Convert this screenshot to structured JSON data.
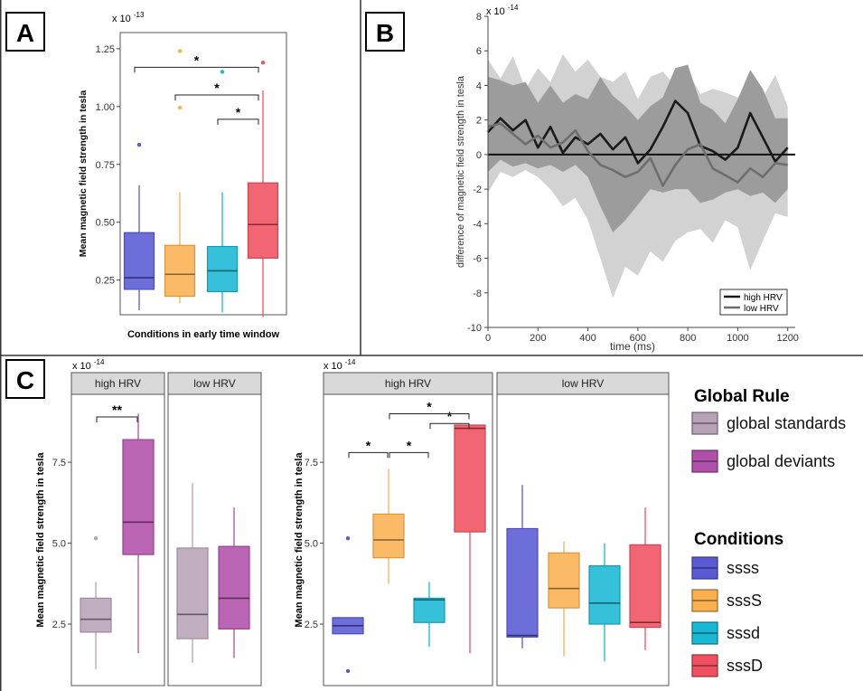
{
  "panels": {
    "A": {
      "label": "A"
    },
    "B": {
      "label": "B"
    },
    "C": {
      "label": "C"
    }
  },
  "colors": {
    "ssss": "#5a5ad6",
    "sssS": "#fbb04f",
    "sssd": "#17b8d4",
    "sssD": "#f0505f",
    "global_standards": "#b8a2b8",
    "global_deviants": "#b14fab",
    "high_hrv_line": "#1a1a1a",
    "low_hrv_line": "#6e6e6e",
    "ribbon_dark": "#9c9c9c",
    "ribbon_light": "#d2d2d2",
    "strip_bg": "#d9d9d9",
    "axis": "#444444"
  },
  "chart_data": [
    {
      "id": "A",
      "type": "box",
      "scale_note": "x 10",
      "scale_exp": "-13",
      "ylabel": "Mean magnetic field strength in tesla",
      "xlabel": "Conditions in early time window",
      "ylim": [
        0.1,
        1.32
      ],
      "yticks": [
        "0.25",
        "0.50",
        "0.75",
        "1.00",
        "1.25"
      ],
      "ytick_values": [
        0.25,
        0.5,
        0.75,
        1.0,
        1.25
      ],
      "grid": false,
      "boxes": [
        {
          "condition": "ssss",
          "q1": 0.21,
          "median": 0.26,
          "q3": 0.455,
          "whisker_low": 0.12,
          "whisker_high": 0.66,
          "outliers": [
            0.835
          ]
        },
        {
          "condition": "sssS",
          "q1": 0.18,
          "median": 0.275,
          "q3": 0.4,
          "whisker_low": 0.15,
          "whisker_high": 0.63,
          "outliers": [
            0.995,
            1.24
          ]
        },
        {
          "condition": "sssd",
          "q1": 0.2,
          "median": 0.29,
          "q3": 0.395,
          "whisker_low": 0.11,
          "whisker_high": 0.63,
          "outliers": [
            1.15
          ]
        },
        {
          "condition": "sssD",
          "q1": 0.345,
          "median": 0.49,
          "q3": 0.67,
          "whisker_low": 0.09,
          "whisker_high": 1.07,
          "outliers": [
            1.19
          ]
        }
      ],
      "significance": [
        {
          "from": 0,
          "to": 3,
          "y": 1.17,
          "label": "*"
        },
        {
          "from": 1,
          "to": 3,
          "y": 1.05,
          "label": "*"
        },
        {
          "from": 2,
          "to": 3,
          "y": 0.945,
          "label": "*"
        }
      ]
    },
    {
      "id": "B",
      "type": "line",
      "scale_note": "x 10",
      "scale_exp": "-14",
      "xlabel": "time (ms)",
      "ylabel": "difference of magnetic field strength in tesla",
      "xlim": [
        0,
        1230
      ],
      "ylim": [
        -10,
        8
      ],
      "xticks": [
        "0",
        "200",
        "400",
        "600",
        "800",
        "1000",
        "1200"
      ],
      "xtick_values": [
        0,
        200,
        400,
        600,
        800,
        1000,
        1200
      ],
      "yticks": [
        "-10",
        "-8",
        "-6",
        "-4",
        "-2",
        "0",
        "2",
        "4",
        "6",
        "8"
      ],
      "ytick_values": [
        -10,
        -8,
        -6,
        -4,
        -2,
        0,
        2,
        4,
        6,
        8
      ],
      "legend_position": "bottom-right",
      "series": [
        {
          "name": "high HRV",
          "x": [
            0,
            50,
            100,
            150,
            200,
            250,
            300,
            350,
            400,
            450,
            500,
            550,
            600,
            650,
            700,
            750,
            800,
            850,
            900,
            950,
            1000,
            1050,
            1100,
            1150,
            1200
          ],
          "y": [
            1.3,
            2.1,
            1.4,
            2.0,
            0.4,
            1.6,
            0.1,
            1.0,
            0.6,
            1.2,
            0.3,
            1.0,
            -0.5,
            0.3,
            1.6,
            3.1,
            2.4,
            0.5,
            0.2,
            -0.3,
            0.4,
            2.4,
            1.0,
            -0.4,
            0.4
          ]
        },
        {
          "name": "low HRV",
          "x": [
            0,
            50,
            100,
            150,
            200,
            250,
            300,
            350,
            400,
            450,
            500,
            550,
            600,
            650,
            700,
            750,
            800,
            850,
            900,
            950,
            1000,
            1050,
            1100,
            1150,
            1200
          ],
          "y": [
            1.6,
            1.8,
            1.2,
            0.6,
            1.1,
            0.4,
            0.7,
            1.4,
            0.2,
            -0.6,
            -0.9,
            -1.3,
            -1.0,
            -0.2,
            -1.8,
            -0.6,
            0.3,
            0.6,
            -0.8,
            -1.2,
            -1.6,
            -0.8,
            -1.3,
            -0.5,
            -0.6
          ]
        }
      ],
      "ribbons": [
        {
          "series": "low HRV",
          "x": [
            0,
            50,
            100,
            150,
            200,
            250,
            300,
            350,
            400,
            450,
            500,
            550,
            600,
            650,
            700,
            750,
            800,
            850,
            900,
            950,
            1000,
            1050,
            1100,
            1150,
            1200
          ],
          "upper": [
            5.5,
            4.4,
            5.7,
            3.8,
            5.0,
            4.2,
            5.8,
            4.8,
            5.5,
            4.5,
            4.2,
            4.8,
            3.2,
            4.5,
            4.8,
            4.0,
            4.8,
            3.5,
            3.8,
            3.6,
            3.3,
            4.1,
            3.3,
            4.6,
            2.8
          ],
          "lower": [
            -2.2,
            -1.0,
            -1.3,
            -0.9,
            -1.3,
            -2.0,
            -3.0,
            -2.5,
            -3.8,
            -6.0,
            -8.3,
            -6.5,
            -7.0,
            -5.6,
            -6.2,
            -5.0,
            -4.5,
            -4.3,
            -5.1,
            -3.8,
            -4.2,
            -6.7,
            -5.0,
            -3.4,
            -3.6
          ]
        },
        {
          "series": "high HRV",
          "x": [
            0,
            50,
            100,
            150,
            200,
            250,
            300,
            350,
            400,
            450,
            500,
            550,
            600,
            650,
            700,
            750,
            800,
            850,
            900,
            950,
            1000,
            1050,
            1100,
            1150,
            1200
          ],
          "upper": [
            4.5,
            4.3,
            4.0,
            4.2,
            3.0,
            4.0,
            3.0,
            3.5,
            3.2,
            4.5,
            3.4,
            2.8,
            2.0,
            2.8,
            3.3,
            5.0,
            5.2,
            3.0,
            2.6,
            1.8,
            3.2,
            4.9,
            3.8,
            2.1,
            2.1
          ],
          "lower": [
            -1.0,
            -0.3,
            -0.7,
            -0.5,
            -0.8,
            -0.6,
            -1.0,
            -0.6,
            -1.3,
            -3.0,
            -4.5,
            -3.8,
            -2.9,
            -2.0,
            -2.2,
            -2.0,
            -2.0,
            -2.8,
            -2.6,
            -2.2,
            -2.0,
            -2.4,
            -2.2,
            -2.8,
            -2.0
          ]
        }
      ]
    },
    {
      "id": "C1",
      "type": "box",
      "scale_note": "x 10",
      "scale_exp": "-14",
      "ylabel": "Mean magnetic field strength in tesla",
      "ylim": [
        0.6,
        9.6
      ],
      "yticks": [
        "2.5",
        "5.0",
        "7.5"
      ],
      "ytick_values": [
        2.5,
        5.0,
        7.5
      ],
      "facets": [
        {
          "label": "high HRV",
          "boxes": [
            {
              "condition": "global_standards",
              "q1": 2.25,
              "median": 2.65,
              "q3": 3.3,
              "whisker_low": 1.1,
              "whisker_high": 3.8,
              "outliers": [
                5.15
              ]
            },
            {
              "condition": "global_deviants",
              "q1": 4.65,
              "median": 5.65,
              "q3": 8.2,
              "whisker_low": 1.6,
              "whisker_high": 9.0,
              "outliers": []
            }
          ],
          "significance": [
            {
              "from": 0,
              "to": 1,
              "y": 8.9,
              "label": "**"
            }
          ]
        },
        {
          "label": "low HRV",
          "boxes": [
            {
              "condition": "global_standards",
              "q1": 2.05,
              "median": 2.8,
              "q3": 4.85,
              "whisker_low": 1.3,
              "whisker_high": 6.85,
              "outliers": []
            },
            {
              "condition": "global_deviants",
              "q1": 2.35,
              "median": 3.3,
              "q3": 4.9,
              "whisker_low": 1.45,
              "whisker_high": 6.1,
              "outliers": []
            }
          ],
          "significance": []
        }
      ]
    },
    {
      "id": "C2",
      "type": "box",
      "scale_note": "x 10",
      "scale_exp": "-14",
      "ylabel": "Mean magnetic field strength in tesla",
      "ylim": [
        0.6,
        9.6
      ],
      "yticks": [
        "2.5",
        "5.0",
        "7.5"
      ],
      "ytick_values": [
        2.5,
        5.0,
        7.5
      ],
      "facets": [
        {
          "label": "high HRV",
          "boxes": [
            {
              "condition": "ssss",
              "q1": 2.2,
              "median": 2.45,
              "q3": 2.7,
              "whisker_low": 2.2,
              "whisker_high": 2.7,
              "outliers": [
                5.15,
                1.05
              ]
            },
            {
              "condition": "sssS",
              "q1": 4.55,
              "median": 5.1,
              "q3": 5.9,
              "whisker_low": 3.75,
              "whisker_high": 7.3,
              "outliers": []
            },
            {
              "condition": "sssd",
              "q1": 2.55,
              "median": 3.25,
              "q3": 3.3,
              "whisker_low": 1.8,
              "whisker_high": 3.8,
              "outliers": []
            },
            {
              "condition": "sssD",
              "q1": 5.35,
              "median": 8.55,
              "q3": 8.65,
              "whisker_low": 1.6,
              "whisker_high": 8.65,
              "outliers": []
            }
          ],
          "significance": [
            {
              "from": 0,
              "to": 1,
              "y": 7.8,
              "label": "*"
            },
            {
              "from": 1,
              "to": 2,
              "y": 7.8,
              "label": "*"
            },
            {
              "from": 2,
              "to": 3,
              "y": 8.7,
              "label": "*"
            },
            {
              "from": 1,
              "to": 3,
              "y": 9.0,
              "label": "*"
            }
          ]
        },
        {
          "label": "low HRV",
          "boxes": [
            {
              "condition": "ssss",
              "q1": 2.1,
              "median": 2.15,
              "q3": 5.45,
              "whisker_low": 1.75,
              "whisker_high": 6.8,
              "outliers": []
            },
            {
              "condition": "sssS",
              "q1": 3.0,
              "median": 3.6,
              "q3": 4.7,
              "whisker_low": 1.5,
              "whisker_high": 5.05,
              "outliers": []
            },
            {
              "condition": "sssd",
              "q1": 2.5,
              "median": 3.15,
              "q3": 4.3,
              "whisker_low": 1.35,
              "whisker_high": 5.0,
              "outliers": []
            },
            {
              "condition": "sssD",
              "q1": 2.4,
              "median": 2.55,
              "q3": 4.95,
              "whisker_low": 1.7,
              "whisker_high": 6.1,
              "outliers": []
            }
          ],
          "significance": []
        }
      ]
    }
  ],
  "legend_global": {
    "title": "Global Rule",
    "items": [
      {
        "key": "global_standards",
        "label": "global standards"
      },
      {
        "key": "global_deviants",
        "label": "global deviants"
      }
    ]
  },
  "legend_conditions": {
    "title": "Conditions",
    "items": [
      {
        "key": "ssss",
        "label": "ssss"
      },
      {
        "key": "sssS",
        "label": "sssS"
      },
      {
        "key": "sssd",
        "label": "sssd"
      },
      {
        "key": "sssD",
        "label": "sssD"
      }
    ]
  }
}
